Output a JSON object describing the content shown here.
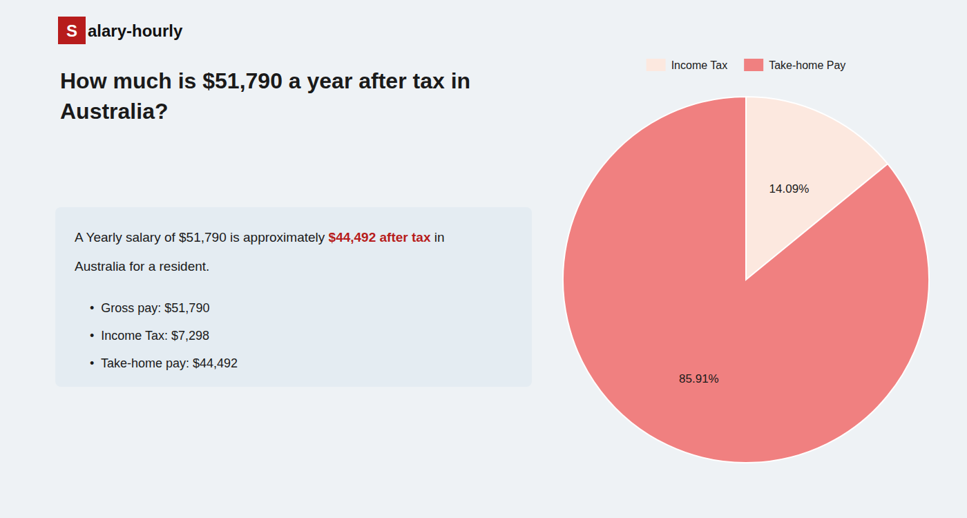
{
  "chart_data": {
    "type": "pie",
    "title": "How much is $51,790 a year after tax in\nAustralia?",
    "categories": [
      "Income Tax",
      "Take-home Pay"
    ],
    "values": [
      14.09,
      85.91
    ],
    "value_labels": [
      "14.09%",
      "85.91%"
    ],
    "colors": [
      "#fce8df",
      "#f08080"
    ],
    "data_labels": true,
    "legend": "top",
    "annotations": [
      {
        "text": "S",
        "color": "#b71c1c"
      },
      {
        "text": "alary-hourly"
      },
      {
        "text": "A Yearly salary of $51,790 is approximately "
      },
      {
        "text": "$44,492 after tax",
        "color": "#b71c1c"
      },
      {
        "text": " in"
      },
      {
        "text": "Australia for a resident."
      },
      {
        "text": "•  Gross pay: $51,790"
      },
      {
        "text": "•  Income Tax: $7,298"
      },
      {
        "text": "•  Take-home pay: $44,492"
      }
    ]
  }
}
